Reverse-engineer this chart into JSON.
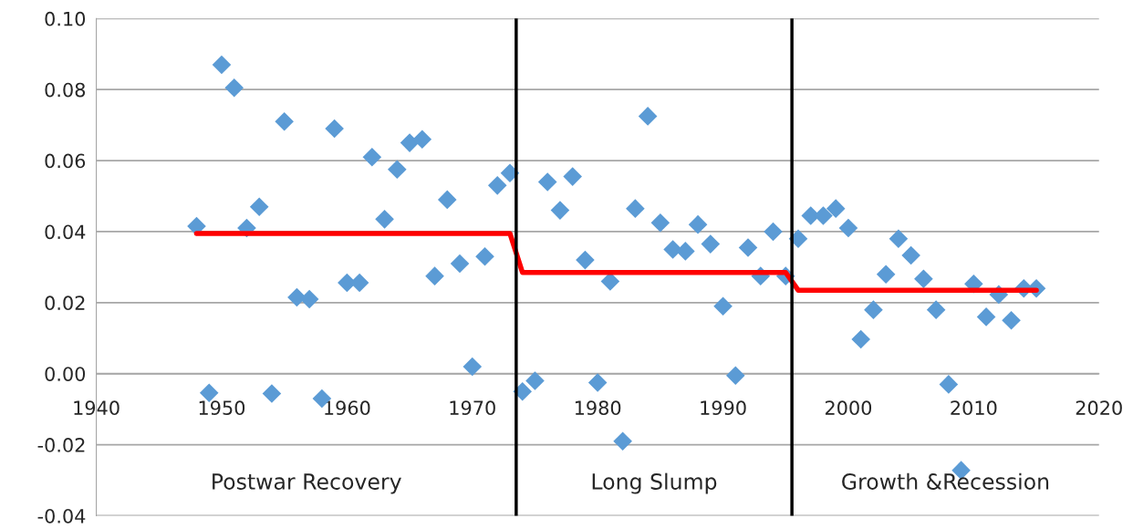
{
  "chart_data": {
    "type": "scatter",
    "x": [
      1948,
      1949,
      1950,
      1951,
      1952,
      1953,
      1954,
      1955,
      1956,
      1957,
      1958,
      1959,
      1960,
      1961,
      1962,
      1963,
      1964,
      1965,
      1966,
      1967,
      1968,
      1969,
      1970,
      1971,
      1972,
      1973,
      1974,
      1975,
      1976,
      1977,
      1978,
      1979,
      1980,
      1981,
      1982,
      1983,
      1984,
      1985,
      1986,
      1987,
      1988,
      1989,
      1990,
      1991,
      1992,
      1993,
      1994,
      1995,
      1996,
      1997,
      1998,
      1999,
      2000,
      2001,
      2002,
      2003,
      2004,
      2005,
      2006,
      2007,
      2008,
      2009,
      2010,
      2011,
      2012,
      2013,
      2014,
      2015
    ],
    "series": [
      {
        "color": "#5b9bd5",
        "marker": "diamond",
        "values": [
          0.0415,
          -0.0054,
          0.087,
          0.0805,
          0.041,
          0.047,
          -0.0056,
          0.071,
          0.0215,
          0.021,
          -0.007,
          0.069,
          0.0256,
          0.0256,
          0.061,
          0.0435,
          0.0575,
          0.065,
          0.066,
          0.0275,
          0.049,
          0.031,
          0.002,
          0.033,
          0.053,
          0.0565,
          -0.005,
          -0.002,
          0.054,
          0.046,
          0.0555,
          0.032,
          -0.0025,
          0.026,
          -0.019,
          0.0465,
          0.0725,
          0.0425,
          0.035,
          0.0345,
          0.042,
          0.0365,
          0.019,
          -0.0005,
          0.0355,
          0.0275,
          0.04,
          0.0275,
          0.038,
          0.0445,
          0.0445,
          0.0465,
          0.041,
          0.0097,
          0.018,
          0.028,
          0.038,
          0.0333,
          0.0267,
          0.018,
          -0.003,
          -0.0272,
          0.0253,
          0.016,
          0.0223,
          0.015,
          0.024,
          0.024
        ]
      },
      {
        "type": "line",
        "color": "#ff0000",
        "marker": "none",
        "x": [
          1948,
          1973,
          1974,
          1995,
          1996,
          2015
        ],
        "values": [
          0.0395,
          0.0395,
          0.0285,
          0.0285,
          0.0235,
          0.0235
        ]
      }
    ],
    "xlim": [
      1940,
      2020
    ],
    "xticks": [
      1940,
      1950,
      1960,
      1970,
      1980,
      1990,
      2000,
      2010,
      2020
    ],
    "ylim": [
      -0.04,
      0.1
    ],
    "yticks": [
      {
        "value": -0.04,
        "label": "-0.04"
      },
      {
        "value": -0.02,
        "label": "-0.02"
      },
      {
        "value": 0,
        "label": "0.00"
      },
      {
        "value": 0.02,
        "label": "0.02"
      },
      {
        "value": 0.04,
        "label": "0.04"
      },
      {
        "value": 0.06,
        "label": "0.06"
      },
      {
        "value": 0.08,
        "label": "0.08"
      },
      {
        "value": 0.1,
        "label": "0.10"
      }
    ],
    "grid": "y",
    "ref_lines": [
      {
        "axis": "x",
        "value": 1973.5,
        "color": "#000000"
      },
      {
        "axis": "x",
        "value": 1995.5,
        "color": "#000000"
      }
    ],
    "annotations": [
      "Postwar Recovery",
      "Long Slump",
      "Growth &Recession"
    ]
  }
}
